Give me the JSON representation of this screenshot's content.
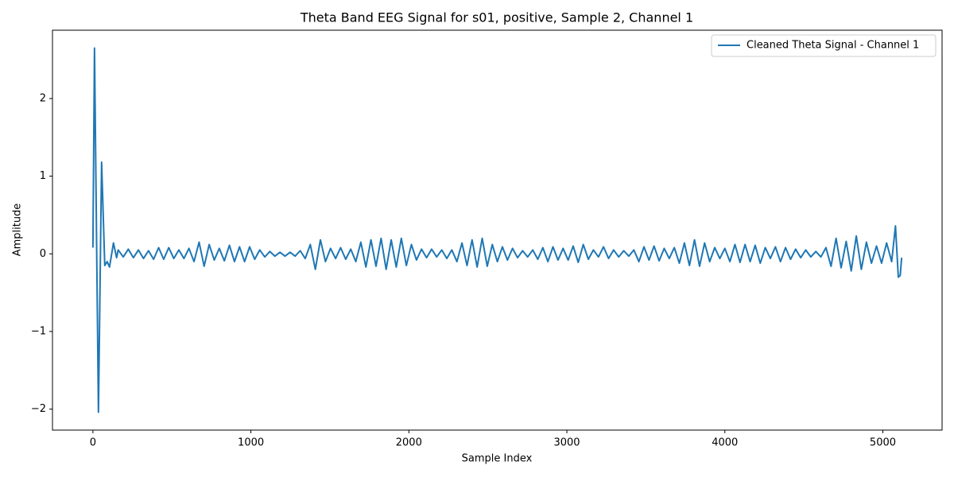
{
  "chart_data": {
    "type": "line",
    "title": "Theta Band EEG Signal for s01, positive, Sample 2, Channel 1",
    "x_label": "Sample Index",
    "y_label": "Amplitude",
    "x": [
      0,
      10,
      35,
      55,
      75,
      90,
      105,
      130,
      150,
      160,
      192,
      224,
      256,
      288,
      320,
      352,
      384,
      416,
      448,
      480,
      512,
      544,
      576,
      608,
      640,
      672,
      704,
      736,
      768,
      800,
      832,
      864,
      896,
      928,
      960,
      992,
      1024,
      1056,
      1088,
      1120,
      1152,
      1184,
      1216,
      1248,
      1280,
      1312,
      1344,
      1376,
      1408,
      1440,
      1472,
      1504,
      1536,
      1568,
      1600,
      1632,
      1664,
      1696,
      1728,
      1760,
      1792,
      1824,
      1856,
      1888,
      1920,
      1952,
      1984,
      2016,
      2048,
      2080,
      2112,
      2144,
      2176,
      2208,
      2240,
      2272,
      2304,
      2336,
      2368,
      2400,
      2432,
      2464,
      2496,
      2528,
      2560,
      2592,
      2624,
      2656,
      2688,
      2720,
      2752,
      2784,
      2816,
      2848,
      2880,
      2912,
      2944,
      2976,
      3008,
      3040,
      3072,
      3104,
      3136,
      3168,
      3200,
      3232,
      3264,
      3296,
      3328,
      3360,
      3392,
      3424,
      3456,
      3488,
      3520,
      3552,
      3584,
      3616,
      3648,
      3680,
      3712,
      3744,
      3776,
      3808,
      3840,
      3872,
      3904,
      3936,
      3968,
      4000,
      4032,
      4064,
      4096,
      4128,
      4160,
      4192,
      4224,
      4256,
      4288,
      4320,
      4352,
      4384,
      4416,
      4448,
      4480,
      4512,
      4544,
      4576,
      4608,
      4640,
      4672,
      4704,
      4736,
      4768,
      4800,
      4832,
      4864,
      4896,
      4928,
      4960,
      4992,
      5024,
      5056,
      5080,
      5098,
      5110,
      5119
    ],
    "series": [
      {
        "name": "Cleaned Theta Signal - Channel 1",
        "color": "#1f77b4",
        "values": [
          0.08,
          2.65,
          -2.04,
          1.18,
          -0.15,
          -0.1,
          -0.17,
          0.14,
          -0.05,
          0.05,
          -0.04,
          0.06,
          -0.05,
          0.05,
          -0.06,
          0.04,
          -0.07,
          0.08,
          -0.07,
          0.08,
          -0.06,
          0.05,
          -0.06,
          0.07,
          -0.1,
          0.15,
          -0.16,
          0.12,
          -0.08,
          0.07,
          -0.09,
          0.11,
          -0.1,
          0.09,
          -0.1,
          0.09,
          -0.07,
          0.05,
          -0.04,
          0.03,
          -0.03,
          0.02,
          -0.03,
          0.02,
          -0.03,
          0.04,
          -0.06,
          0.12,
          -0.2,
          0.18,
          -0.1,
          0.07,
          -0.06,
          0.08,
          -0.07,
          0.06,
          -0.1,
          0.15,
          -0.17,
          0.18,
          -0.16,
          0.2,
          -0.2,
          0.18,
          -0.17,
          0.2,
          -0.15,
          0.12,
          -0.08,
          0.06,
          -0.05,
          0.06,
          -0.04,
          0.05,
          -0.06,
          0.05,
          -0.1,
          0.14,
          -0.15,
          0.18,
          -0.17,
          0.2,
          -0.16,
          0.12,
          -0.1,
          0.09,
          -0.08,
          0.07,
          -0.05,
          0.04,
          -0.04,
          0.05,
          -0.07,
          0.08,
          -0.1,
          0.09,
          -0.08,
          0.07,
          -0.08,
          0.1,
          -0.11,
          0.12,
          -0.07,
          0.05,
          -0.04,
          0.09,
          -0.06,
          0.05,
          -0.04,
          0.04,
          -0.03,
          0.05,
          -0.1,
          0.09,
          -0.08,
          0.1,
          -0.09,
          0.07,
          -0.06,
          0.08,
          -0.12,
          0.14,
          -0.15,
          0.18,
          -0.16,
          0.14,
          -0.1,
          0.08,
          -0.06,
          0.07,
          -0.1,
          0.12,
          -0.11,
          0.12,
          -0.1,
          0.11,
          -0.12,
          0.08,
          -0.06,
          0.09,
          -0.1,
          0.08,
          -0.07,
          0.06,
          -0.05,
          0.05,
          -0.04,
          0.03,
          -0.04,
          0.08,
          -0.16,
          0.2,
          -0.18,
          0.16,
          -0.22,
          0.23,
          -0.2,
          0.15,
          -0.12,
          0.1,
          -0.12,
          0.14,
          -0.1,
          0.36,
          -0.3,
          -0.28,
          -0.05
        ]
      }
    ],
    "xlim": [
      -256,
      5375
    ],
    "xticks": [
      0,
      1000,
      2000,
      3000,
      4000,
      5000
    ],
    "ylim": [
      -2.27,
      2.88
    ],
    "yticks": [
      {
        "value": -2,
        "label": "−2"
      },
      {
        "value": -1,
        "label": "−1"
      },
      0,
      1,
      2
    ],
    "legend": "upper right"
  }
}
